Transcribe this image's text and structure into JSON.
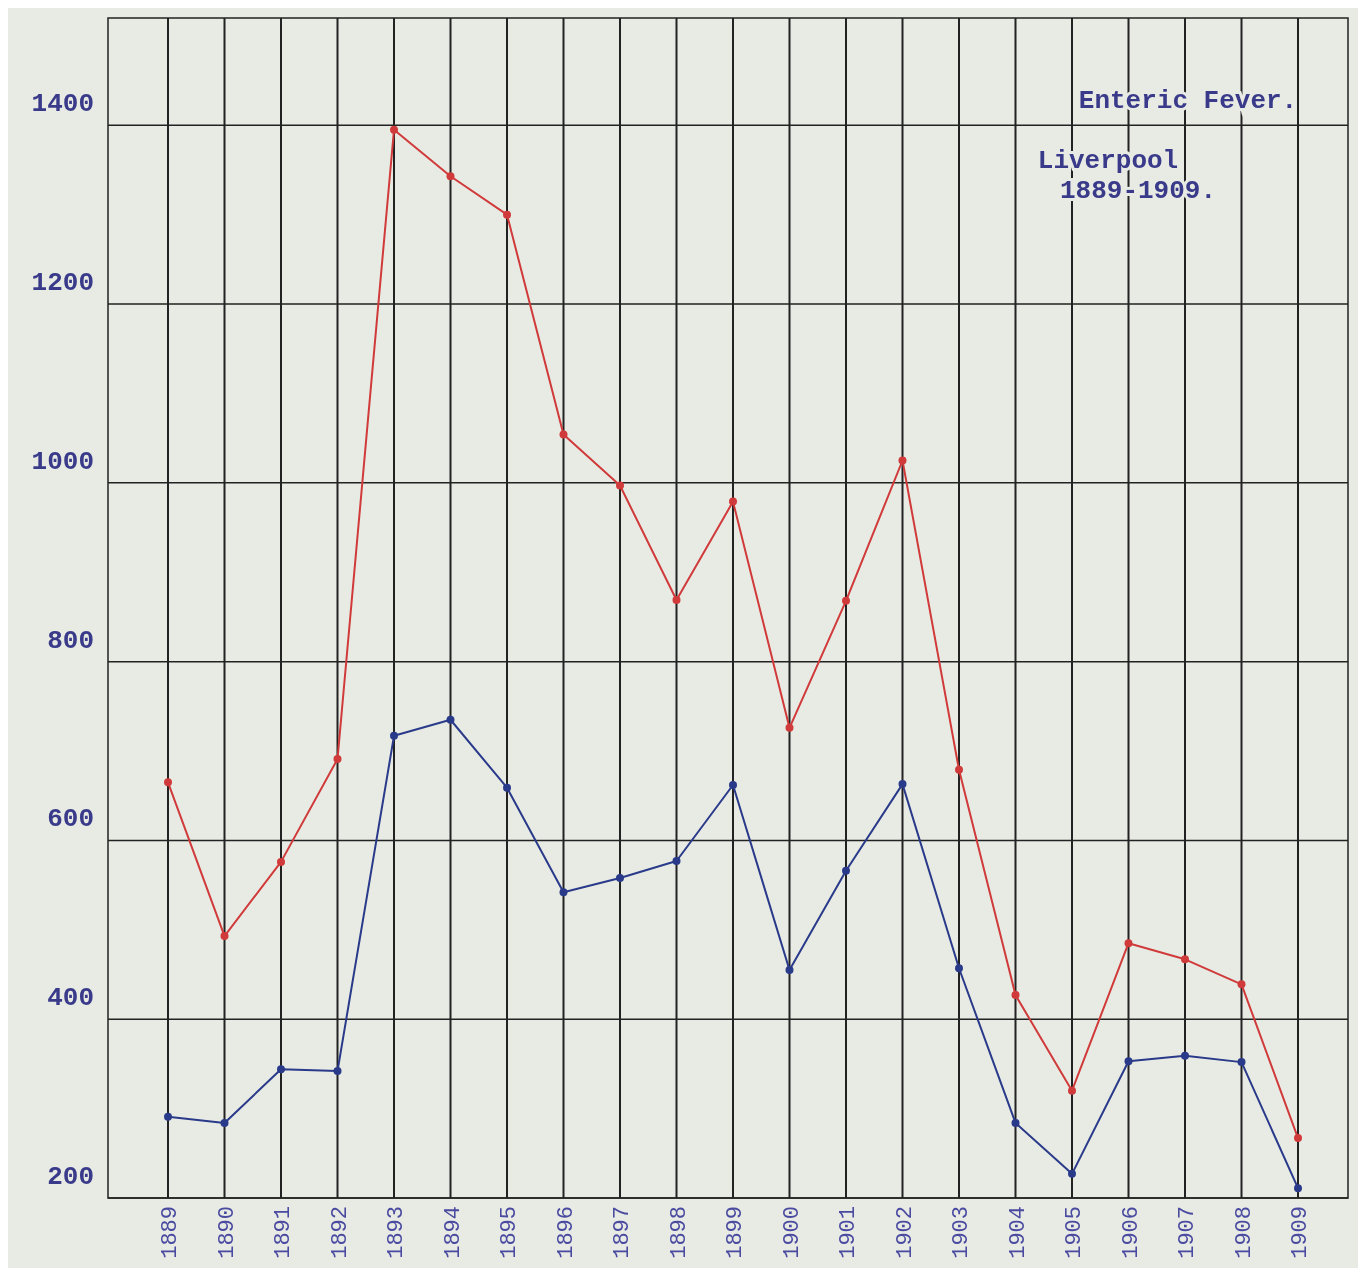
{
  "chart_data": {
    "type": "line",
    "title": "Enteric Fever.",
    "subtitle": "Liverpool\n1889-1909.",
    "categories": [
      "1889",
      "1890",
      "1891",
      "1892",
      "1893",
      "1894",
      "1895",
      "1896",
      "1897",
      "1898",
      "1899",
      "1900",
      "1901",
      "1902",
      "1903",
      "1904",
      "1905",
      "1906",
      "1907",
      "1908",
      "1909"
    ],
    "series": [
      {
        "color": "#d03a3a",
        "values": [
          665,
          493,
          576,
          691,
          1395,
          1343,
          1300,
          1054,
          997,
          869,
          979,
          726,
          868,
          1025,
          679,
          427,
          320,
          485,
          467,
          439,
          267
        ]
      },
      {
        "color": "#2a3a8a",
        "values": [
          291,
          284,
          344,
          342,
          717,
          735,
          659,
          542,
          558,
          577,
          662,
          455,
          566,
          663,
          457,
          284,
          227,
          353,
          359,
          352,
          211
        ]
      }
    ],
    "ylim": [
      200,
      1520
    ],
    "yticks": [
      200,
      400,
      600,
      800,
      1000,
      1200,
      1400
    ],
    "grid": true,
    "marker": "circle",
    "line_style": "solid"
  }
}
